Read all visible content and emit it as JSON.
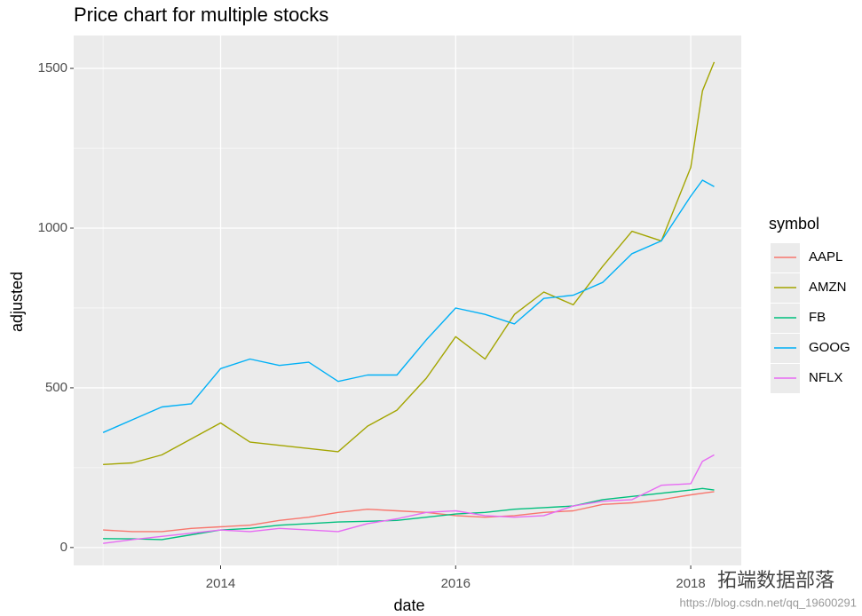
{
  "chart_data": {
    "type": "line",
    "title": "Price chart for multiple stocks",
    "x_label": "date",
    "y_label": "adjusted",
    "legend_title": "symbol",
    "legend_position": "right",
    "x": [
      2013.0,
      2013.25,
      2013.5,
      2013.75,
      2014.0,
      2014.25,
      2014.5,
      2014.75,
      2015.0,
      2015.25,
      2015.5,
      2015.75,
      2016.0,
      2016.25,
      2016.5,
      2016.75,
      2017.0,
      2017.25,
      2017.5,
      2017.75,
      2018.0,
      2018.1,
      2018.2
    ],
    "series": [
      {
        "name": "AAPL",
        "color": "#F8766D",
        "values": [
          55,
          50,
          50,
          60,
          65,
          70,
          85,
          95,
          110,
          120,
          115,
          110,
          100,
          95,
          100,
          110,
          115,
          135,
          140,
          150,
          165,
          170,
          175
        ]
      },
      {
        "name": "AMZN",
        "color": "#A3A500",
        "values": [
          260,
          265,
          290,
          340,
          390,
          330,
          320,
          310,
          300,
          380,
          430,
          530,
          660,
          590,
          730,
          800,
          760,
          880,
          990,
          960,
          1190,
          1430,
          1520
        ]
      },
      {
        "name": "FB",
        "color": "#00BF7D",
        "values": [
          28,
          27,
          25,
          40,
          55,
          60,
          70,
          75,
          80,
          82,
          85,
          95,
          105,
          110,
          120,
          125,
          130,
          150,
          160,
          170,
          180,
          185,
          180
        ]
      },
      {
        "name": "GOOG",
        "color": "#00B0F6",
        "values": [
          360,
          400,
          440,
          450,
          560,
          590,
          570,
          580,
          520,
          540,
          540,
          650,
          750,
          730,
          700,
          780,
          790,
          830,
          920,
          960,
          1100,
          1150,
          1130
        ]
      },
      {
        "name": "NFLX",
        "color": "#E76BF3",
        "values": [
          13,
          25,
          35,
          45,
          55,
          50,
          60,
          55,
          50,
          75,
          90,
          110,
          115,
          100,
          95,
          100,
          130,
          145,
          150,
          195,
          200,
          270,
          290
        ]
      }
    ],
    "xlim": [
      2012.75,
      2018.43
    ],
    "xticks": [
      2014,
      2016,
      2018
    ],
    "xminor_ticks": [
      2013,
      2015,
      2017
    ],
    "ylim": [
      -56,
      1603
    ],
    "yticks": [
      0,
      500,
      1000,
      1500
    ],
    "yminor_ticks": [
      250,
      750,
      1250
    ],
    "grid": true
  },
  "watermark": {
    "text": "拓端数据部落",
    "url": "https://blog.csdn.net/qq_19600291"
  }
}
